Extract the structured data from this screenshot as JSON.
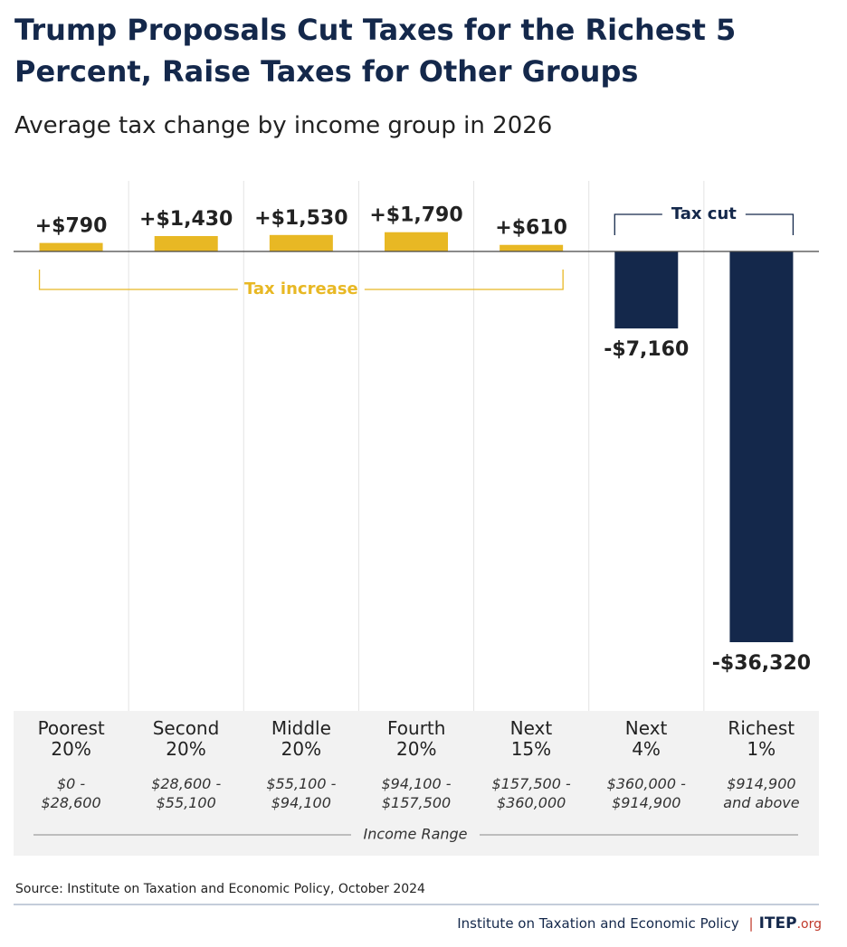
{
  "chart_data": {
    "type": "bar",
    "title": "Trump Proposals Cut Taxes for the Richest 5 Percent, Raise Taxes for Other Groups",
    "subtitle": "Average tax change by income group in 2026",
    "categories": [
      "Poorest 20%",
      "Second 20%",
      "Middle 20%",
      "Fourth 20%",
      "Next 15%",
      "Next 4%",
      "Richest 1%"
    ],
    "income_ranges": [
      "$0 - $28,600",
      "$28,600 - $55,100",
      "$55,100 - $94,100",
      "$94,100 - $157,500",
      "$157,500 - $360,000",
      "$360,000 - $914,900",
      "$914,900 and above"
    ],
    "values": [
      790,
      1430,
      1530,
      1790,
      610,
      -7160,
      -36320
    ],
    "value_labels": [
      "+$790",
      "+$1,430",
      "+$1,530",
      "+$1,790",
      "+$610",
      "-$7,160",
      "-$36,320"
    ],
    "colors": [
      "#e8b824",
      "#e8b824",
      "#e8b824",
      "#e8b824",
      "#e8b824",
      "#14284b",
      "#14284b"
    ],
    "increase_label": "Tax increase",
    "cut_label": "Tax cut",
    "x_label": "Income Range",
    "source": "Source: Institute on Taxation and Economic Policy, October 2024"
  },
  "footer": {
    "organization": "Institute on Taxation and Economic Policy",
    "logo": "ITEP",
    "logo_suffix": ".org"
  }
}
